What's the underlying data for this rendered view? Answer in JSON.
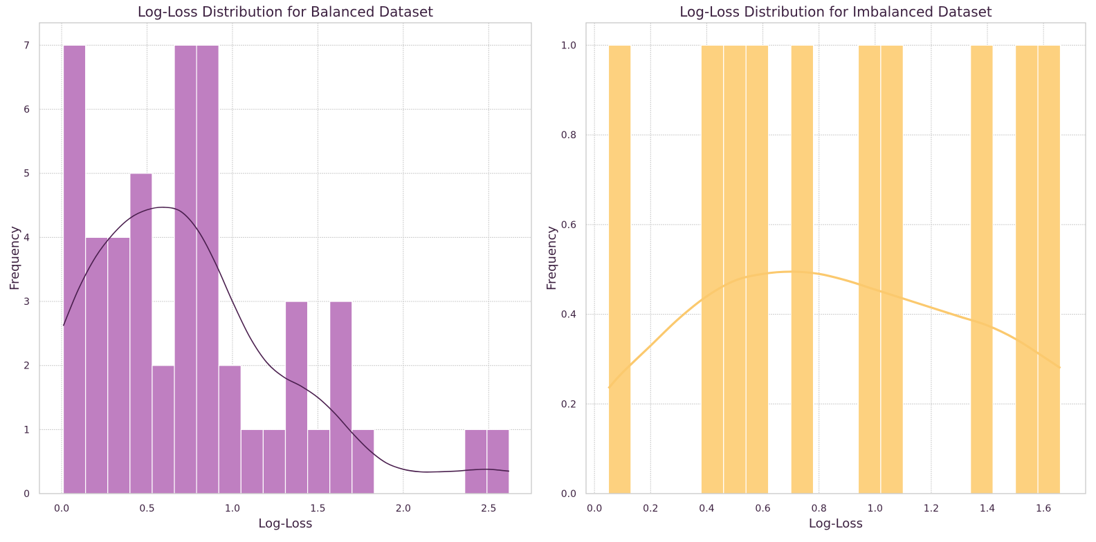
{
  "chart_data": [
    {
      "type": "bar",
      "title": "Log-Loss Distribution for Balanced Dataset",
      "xlabel": "Log-Loss",
      "ylabel": "Frequency",
      "xlim": [
        -0.13,
        2.75
      ],
      "ylim": [
        0,
        7.35
      ],
      "xticks": [
        0.0,
        0.5,
        1.0,
        1.5,
        2.0,
        2.5
      ],
      "xtick_labels": [
        "0.0",
        "0.5",
        "1.0",
        "1.5",
        "2.0",
        "2.5"
      ],
      "yticks": [
        0,
        1,
        2,
        3,
        4,
        5,
        6,
        7
      ],
      "ytick_labels": [
        "0",
        "1",
        "2",
        "3",
        "4",
        "5",
        "6",
        "7"
      ],
      "grid": true,
      "bar_color": "#bf7fc1",
      "line_color": "#4a1f4e",
      "bins": [
        {
          "x0": 0.01,
          "x1": 0.14,
          "count": 7
        },
        {
          "x0": 0.14,
          "x1": 0.27,
          "count": 4
        },
        {
          "x0": 0.27,
          "x1": 0.4,
          "count": 4
        },
        {
          "x0": 0.4,
          "x1": 0.53,
          "count": 5
        },
        {
          "x0": 0.53,
          "x1": 0.66,
          "count": 2
        },
        {
          "x0": 0.66,
          "x1": 0.79,
          "count": 7
        },
        {
          "x0": 0.79,
          "x1": 0.92,
          "count": 7
        },
        {
          "x0": 0.92,
          "x1": 1.05,
          "count": 2
        },
        {
          "x0": 1.05,
          "x1": 1.18,
          "count": 1
        },
        {
          "x0": 1.18,
          "x1": 1.31,
          "count": 1
        },
        {
          "x0": 1.31,
          "x1": 1.44,
          "count": 3
        },
        {
          "x0": 1.44,
          "x1": 1.57,
          "count": 1
        },
        {
          "x0": 1.57,
          "x1": 1.7,
          "count": 3
        },
        {
          "x0": 1.7,
          "x1": 1.83,
          "count": 1
        },
        {
          "x0": 2.36,
          "x1": 2.49,
          "count": 1
        },
        {
          "x0": 2.49,
          "x1": 2.62,
          "count": 1
        }
      ],
      "kde": {
        "x": [
          0.01,
          0.1,
          0.2,
          0.3,
          0.4,
          0.5,
          0.6,
          0.7,
          0.8,
          0.9,
          1.0,
          1.1,
          1.2,
          1.3,
          1.4,
          1.5,
          1.6,
          1.7,
          1.8,
          1.9,
          2.0,
          2.1,
          2.2,
          2.3,
          2.4,
          2.5,
          2.62
        ],
        "y": [
          2.62,
          3.2,
          3.7,
          4.05,
          4.3,
          4.43,
          4.47,
          4.4,
          4.1,
          3.6,
          3.0,
          2.45,
          2.05,
          1.82,
          1.68,
          1.5,
          1.25,
          0.95,
          0.68,
          0.48,
          0.38,
          0.34,
          0.34,
          0.35,
          0.37,
          0.38,
          0.35
        ]
      }
    },
    {
      "type": "bar",
      "title": "Log-Loss Distribution for Imbalanced Dataset",
      "xlabel": "Log-Loss",
      "ylabel": "Frequency",
      "xlim": [
        -0.03,
        1.75
      ],
      "ylim": [
        0,
        1.05
      ],
      "xticks": [
        0.0,
        0.2,
        0.4,
        0.6,
        0.8,
        1.0,
        1.2,
        1.4,
        1.6
      ],
      "xtick_labels": [
        "0.0",
        "0.2",
        "0.4",
        "0.6",
        "0.8",
        "1.0",
        "1.2",
        "1.4",
        "1.6"
      ],
      "yticks": [
        0.0,
        0.2,
        0.4,
        0.6,
        0.8,
        1.0
      ],
      "ytick_labels": [
        "0.0",
        "0.2",
        "0.4",
        "0.6",
        "0.8",
        "1.0"
      ],
      "grid": true,
      "bar_color": "#fdd17f",
      "line_color": "#fbc96e",
      "bins": [
        {
          "x0": 0.05,
          "x1": 0.13,
          "count": 1
        },
        {
          "x0": 0.38,
          "x1": 0.46,
          "count": 1
        },
        {
          "x0": 0.46,
          "x1": 0.54,
          "count": 1
        },
        {
          "x0": 0.54,
          "x1": 0.62,
          "count": 1
        },
        {
          "x0": 0.7,
          "x1": 0.78,
          "count": 1
        },
        {
          "x0": 0.94,
          "x1": 1.02,
          "count": 1
        },
        {
          "x0": 1.02,
          "x1": 1.1,
          "count": 1
        },
        {
          "x0": 1.34,
          "x1": 1.42,
          "count": 1
        },
        {
          "x0": 1.5,
          "x1": 1.58,
          "count": 1
        },
        {
          "x0": 1.58,
          "x1": 1.66,
          "count": 1
        }
      ],
      "kde": {
        "x": [
          0.05,
          0.1,
          0.2,
          0.3,
          0.4,
          0.5,
          0.6,
          0.7,
          0.8,
          0.9,
          1.0,
          1.1,
          1.2,
          1.3,
          1.4,
          1.5,
          1.6,
          1.66
        ],
        "y": [
          0.235,
          0.27,
          0.33,
          0.39,
          0.44,
          0.475,
          0.49,
          0.495,
          0.49,
          0.475,
          0.455,
          0.435,
          0.415,
          0.395,
          0.375,
          0.345,
          0.305,
          0.28
        ]
      }
    }
  ]
}
